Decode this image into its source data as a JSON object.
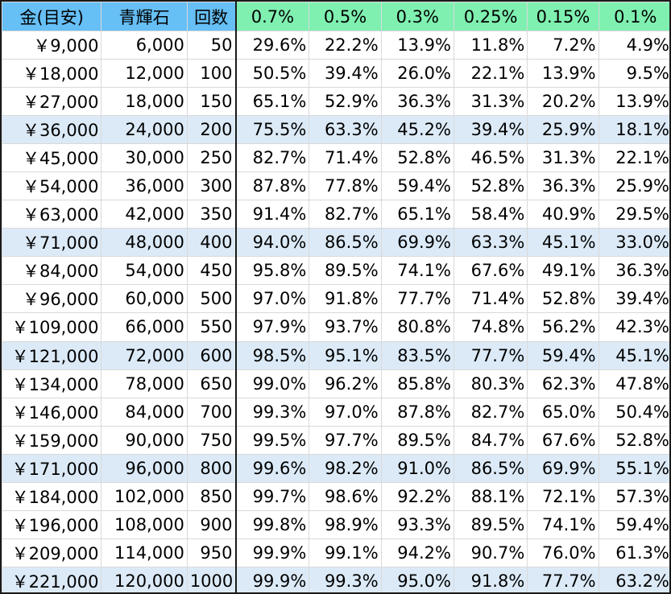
{
  "columns": {
    "left": [
      "金(目安)",
      "青輝石",
      "回数"
    ],
    "pct": [
      "0.7%",
      "0.5%",
      "0.3%",
      "0.25%",
      "0.15%",
      "0.1%"
    ]
  },
  "colors": {
    "left_header": "#66bff5",
    "pct_header": "#7ff0b0",
    "highlight_row": "#dceaf7"
  },
  "rows": [
    {
      "money": "￥9,000",
      "gems": "6,000",
      "pulls": "50",
      "p": [
        "29.6%",
        "22.2%",
        "13.9%",
        "11.8%",
        "7.2%",
        "4.9%"
      ],
      "hl": false
    },
    {
      "money": "￥18,000",
      "gems": "12,000",
      "pulls": "100",
      "p": [
        "50.5%",
        "39.4%",
        "26.0%",
        "22.1%",
        "13.9%",
        "9.5%"
      ],
      "hl": false
    },
    {
      "money": "￥27,000",
      "gems": "18,000",
      "pulls": "150",
      "p": [
        "65.1%",
        "52.9%",
        "36.3%",
        "31.3%",
        "20.2%",
        "13.9%"
      ],
      "hl": false
    },
    {
      "money": "￥36,000",
      "gems": "24,000",
      "pulls": "200",
      "p": [
        "75.5%",
        "63.3%",
        "45.2%",
        "39.4%",
        "25.9%",
        "18.1%"
      ],
      "hl": true
    },
    {
      "money": "￥45,000",
      "gems": "30,000",
      "pulls": "250",
      "p": [
        "82.7%",
        "71.4%",
        "52.8%",
        "46.5%",
        "31.3%",
        "22.1%"
      ],
      "hl": false
    },
    {
      "money": "￥54,000",
      "gems": "36,000",
      "pulls": "300",
      "p": [
        "87.8%",
        "77.8%",
        "59.4%",
        "52.8%",
        "36.3%",
        "25.9%"
      ],
      "hl": false
    },
    {
      "money": "￥63,000",
      "gems": "42,000",
      "pulls": "350",
      "p": [
        "91.4%",
        "82.7%",
        "65.1%",
        "58.4%",
        "40.9%",
        "29.5%"
      ],
      "hl": false
    },
    {
      "money": "￥71,000",
      "gems": "48,000",
      "pulls": "400",
      "p": [
        "94.0%",
        "86.5%",
        "69.9%",
        "63.3%",
        "45.1%",
        "33.0%"
      ],
      "hl": true
    },
    {
      "money": "￥84,000",
      "gems": "54,000",
      "pulls": "450",
      "p": [
        "95.8%",
        "89.5%",
        "74.1%",
        "67.6%",
        "49.1%",
        "36.3%"
      ],
      "hl": false
    },
    {
      "money": "￥96,000",
      "gems": "60,000",
      "pulls": "500",
      "p": [
        "97.0%",
        "91.8%",
        "77.7%",
        "71.4%",
        "52.8%",
        "39.4%"
      ],
      "hl": false
    },
    {
      "money": "￥109,000",
      "gems": "66,000",
      "pulls": "550",
      "p": [
        "97.9%",
        "93.7%",
        "80.8%",
        "74.8%",
        "56.2%",
        "42.3%"
      ],
      "hl": false
    },
    {
      "money": "￥121,000",
      "gems": "72,000",
      "pulls": "600",
      "p": [
        "98.5%",
        "95.1%",
        "83.5%",
        "77.7%",
        "59.4%",
        "45.1%"
      ],
      "hl": true
    },
    {
      "money": "￥134,000",
      "gems": "78,000",
      "pulls": "650",
      "p": [
        "99.0%",
        "96.2%",
        "85.8%",
        "80.3%",
        "62.3%",
        "47.8%"
      ],
      "hl": false
    },
    {
      "money": "￥146,000",
      "gems": "84,000",
      "pulls": "700",
      "p": [
        "99.3%",
        "97.0%",
        "87.8%",
        "82.7%",
        "65.0%",
        "50.4%"
      ],
      "hl": false
    },
    {
      "money": "￥159,000",
      "gems": "90,000",
      "pulls": "750",
      "p": [
        "99.5%",
        "97.7%",
        "89.5%",
        "84.7%",
        "67.6%",
        "52.8%"
      ],
      "hl": false
    },
    {
      "money": "￥171,000",
      "gems": "96,000",
      "pulls": "800",
      "p": [
        "99.6%",
        "98.2%",
        "91.0%",
        "86.5%",
        "69.9%",
        "55.1%"
      ],
      "hl": true
    },
    {
      "money": "￥184,000",
      "gems": "102,000",
      "pulls": "850",
      "p": [
        "99.7%",
        "98.6%",
        "92.2%",
        "88.1%",
        "72.1%",
        "57.3%"
      ],
      "hl": false
    },
    {
      "money": "￥196,000",
      "gems": "108,000",
      "pulls": "900",
      "p": [
        "99.8%",
        "98.9%",
        "93.3%",
        "89.5%",
        "74.1%",
        "59.4%"
      ],
      "hl": false
    },
    {
      "money": "￥209,000",
      "gems": "114,000",
      "pulls": "950",
      "p": [
        "99.9%",
        "99.1%",
        "94.2%",
        "90.7%",
        "76.0%",
        "61.3%"
      ],
      "hl": false
    },
    {
      "money": "￥221,000",
      "gems": "120,000",
      "pulls": "1000",
      "p": [
        "99.9%",
        "99.3%",
        "95.0%",
        "91.8%",
        "77.7%",
        "63.2%"
      ],
      "hl": true
    }
  ]
}
